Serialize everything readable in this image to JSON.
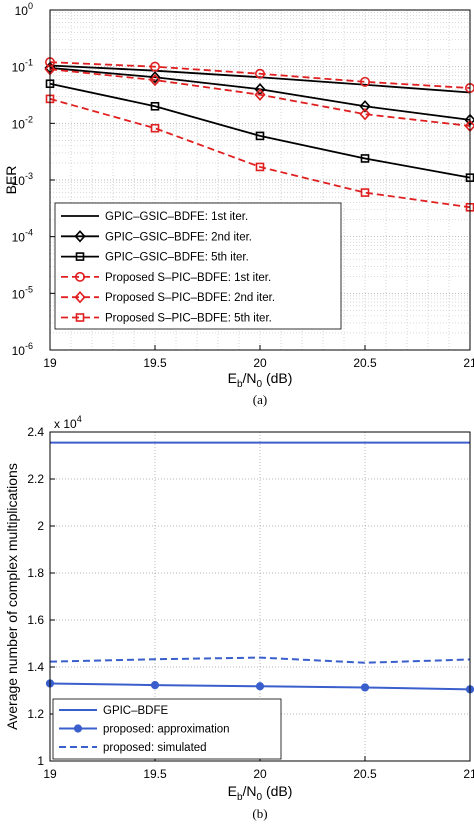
{
  "chart_data": [
    {
      "type": "line",
      "caption": "(a)",
      "xlabel_main": "E",
      "xlabel_sub1": "b",
      "xlabel_mid": "/N",
      "xlabel_sub2": "0",
      "xlabel_tail": " (dB)",
      "ylabel": "BER",
      "x_scale": "linear",
      "y_scale": "log",
      "xlim": [
        19,
        21
      ],
      "ylim": [
        1e-06,
        1
      ],
      "x_ticks": [
        19,
        19.5,
        20,
        20.5,
        21
      ],
      "x_tick_labels": [
        "19",
        "19.5",
        "20",
        "20.5",
        "21"
      ],
      "y_ticks": [
        1e-06,
        1e-05,
        0.0001,
        0.001,
        0.01,
        0.1,
        1
      ],
      "y_tick_mant": [
        "10",
        "10",
        "10",
        "10",
        "10",
        "10",
        "10"
      ],
      "y_tick_exp": [
        "-6",
        "-5",
        "-4",
        "-3",
        "-2",
        "-1",
        "0"
      ],
      "grid": true,
      "legend_position": "bottom-left",
      "series": [
        {
          "name": "GPIC–GSIC–BDFE: 1st iter.",
          "color": "#000000",
          "dash": "solid",
          "marker": "none",
          "x": [
            19,
            19.5,
            20,
            20.5,
            21
          ],
          "y": [
            0.105,
            0.085,
            0.065,
            0.048,
            0.035
          ]
        },
        {
          "name": "GPIC–GSIC–BDFE: 2nd iter.",
          "color": "#000000",
          "dash": "solid",
          "marker": "diamond",
          "x": [
            19,
            19.5,
            20,
            20.5,
            21
          ],
          "y": [
            0.095,
            0.065,
            0.04,
            0.02,
            0.0115
          ]
        },
        {
          "name": "GPIC–GSIC–BDFE: 5th iter.",
          "color": "#000000",
          "dash": "solid",
          "marker": "square",
          "x": [
            19,
            19.5,
            20,
            20.5,
            21
          ],
          "y": [
            0.05,
            0.02,
            0.006,
            0.0024,
            0.0011
          ]
        },
        {
          "name": "Proposed S–PIC–BDFE: 1st iter.",
          "color": "#e02020",
          "dash": "dashed",
          "marker": "circle",
          "x": [
            19,
            19.5,
            20,
            20.5,
            21
          ],
          "y": [
            0.12,
            0.1,
            0.075,
            0.054,
            0.042
          ]
        },
        {
          "name": "Proposed S–PIC–BDFE: 2nd iter.",
          "color": "#e02020",
          "dash": "dashed",
          "marker": "diamond",
          "x": [
            19,
            19.5,
            20,
            20.5,
            21
          ],
          "y": [
            0.09,
            0.058,
            0.032,
            0.0145,
            0.009
          ]
        },
        {
          "name": "Proposed S–PIC–BDFE: 5th iter.",
          "color": "#e02020",
          "dash": "dashed",
          "marker": "square",
          "x": [
            19,
            19.5,
            20,
            20.5,
            21
          ],
          "y": [
            0.027,
            0.0082,
            0.0017,
            0.0006,
            0.00033
          ]
        }
      ]
    },
    {
      "type": "line",
      "caption": "(b)",
      "xlabel_main": "E",
      "xlabel_sub1": "b",
      "xlabel_mid": "/N",
      "xlabel_sub2": "0",
      "xlabel_tail": " (dB)",
      "ylabel": "Average number of complex multiplications",
      "y_multiplier_mant": "x 10",
      "y_multiplier_exp": "4",
      "x_scale": "linear",
      "y_scale": "linear",
      "xlim": [
        19,
        21
      ],
      "ylim": [
        1,
        2.4
      ],
      "x_ticks": [
        19,
        19.5,
        20,
        20.5,
        21
      ],
      "x_tick_labels": [
        "19",
        "19.5",
        "20",
        "20.5",
        "21"
      ],
      "y_ticks": [
        1,
        1.2,
        1.4,
        1.6,
        1.8,
        2,
        2.2,
        2.4
      ],
      "y_tick_labels": [
        "1",
        "1.2",
        "1.4",
        "1.6",
        "1.8",
        "2",
        "2.2",
        "2.4"
      ],
      "grid": true,
      "legend_position": "bottom-left",
      "series": [
        {
          "name": "GPIC–BDFE",
          "color": "#3a5fcd",
          "dash": "solid",
          "marker": "none",
          "x": [
            19,
            19.5,
            20,
            20.5,
            21
          ],
          "y": [
            2.355,
            2.355,
            2.355,
            2.355,
            2.355
          ]
        },
        {
          "name": "proposed: approximation",
          "color": "#3a5fcd",
          "dash": "solid",
          "marker": "dot",
          "x": [
            19,
            19.5,
            20,
            20.5,
            21
          ],
          "y": [
            1.33,
            1.323,
            1.318,
            1.313,
            1.305
          ]
        },
        {
          "name": "proposed: simulated",
          "color": "#3a5fcd",
          "dash": "dashed",
          "marker": "none",
          "x": [
            19,
            19.5,
            20,
            20.5,
            21
          ],
          "y": [
            1.423,
            1.433,
            1.44,
            1.418,
            1.432
          ]
        }
      ]
    }
  ]
}
